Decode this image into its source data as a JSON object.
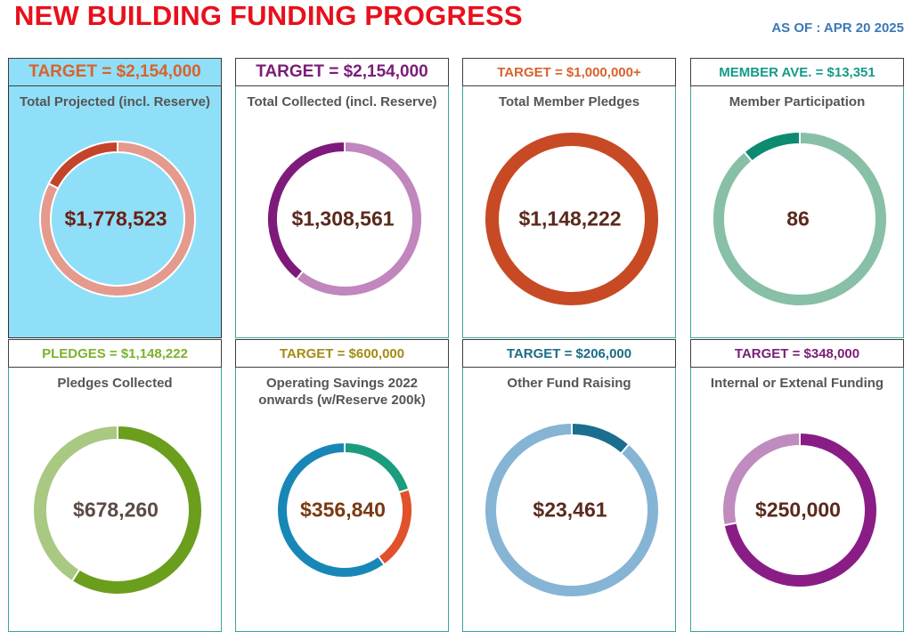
{
  "header": {
    "title": "NEW BUILDING FUNDING PROGRESS",
    "as_of": "AS OF : APR 20 2025"
  },
  "panels": [
    {
      "target_label": "TARGET = $2,154,000",
      "target_color": "#d9622b",
      "title": "Total Projected (incl. Reserve)",
      "center_value": "$1,778,523",
      "value_color": "#6b1f16",
      "highlight": true
    },
    {
      "target_label": "TARGET = $2,154,000",
      "target_color": "#7a1d78",
      "title": "Total Collected (incl. Reserve)",
      "center_value": "$1,308,561",
      "value_color": "#5a2a1c",
      "highlight": false
    },
    {
      "target_label": "TARGET = $1,000,000+",
      "target_color": "#d9622b",
      "title": "Total Member Pledges",
      "center_value": "$1,148,222",
      "value_color": "#5a2a1c",
      "highlight": false
    },
    {
      "target_label": "MEMBER AVE. = $13,351",
      "target_color": "#159a86",
      "title": "Member Participation",
      "center_value": "86",
      "value_color": "#5a2a1c",
      "highlight": false
    },
    {
      "target_label": "PLEDGES = $1,148,222",
      "target_color": "#7cb22d",
      "title": "Pledges Collected",
      "center_value": "$678,260",
      "value_color": "#5b4b45",
      "highlight": false
    },
    {
      "target_label": "TARGET = $600,000",
      "target_color": "#a38c12",
      "title": "Operating Savings 2022 onwards (w/Reserve 200k)",
      "center_value": "$356,840",
      "value_color": "#7a3a12",
      "highlight": false
    },
    {
      "target_label": "TARGET = $206,000",
      "target_color": "#1c6c86",
      "title": "Other Fund Raising",
      "center_value": "$23,461",
      "value_color": "#5a2a1c",
      "highlight": false
    },
    {
      "target_label": "TARGET = $348,000",
      "target_color": "#7a1d78",
      "title": "Internal or Extenal Funding",
      "center_value": "$250,000",
      "value_color": "#5a2a1c",
      "highlight": false
    }
  ],
  "chart_data": [
    {
      "type": "pie",
      "title": "Total Projected (incl. Reserve)",
      "slices": [
        {
          "value": 1778523,
          "color": "#e59a8e"
        },
        {
          "value": 375477,
          "color": "#c4442a"
        }
      ]
    },
    {
      "type": "pie",
      "title": "Total Collected (incl. Reserve)",
      "slices": [
        {
          "value": 1308561,
          "color": "#c186bd"
        },
        {
          "value": 845439,
          "color": "#7e1a7a"
        }
      ]
    },
    {
      "type": "pie",
      "title": "Total Member Pledges",
      "slices": [
        {
          "value": 1,
          "color": "#c74a25"
        }
      ]
    },
    {
      "type": "pie",
      "title": "Member Participation",
      "slices": [
        {
          "value": 0.89,
          "color": "#88bfa7"
        },
        {
          "value": 0.11,
          "color": "#0c8b70"
        }
      ]
    },
    {
      "type": "pie",
      "title": "Pledges Collected",
      "slices": [
        {
          "value": 678260,
          "color": "#6b9e1c"
        },
        {
          "value": 469962,
          "color": "#a9c882"
        }
      ]
    },
    {
      "type": "pie",
      "title": "Operating Savings 2022 onwards (w/Reserve 200k)",
      "slices": [
        {
          "value": 0.2,
          "color": "#1a9c7e"
        },
        {
          "value": 0.2,
          "color": "#e0512c"
        },
        {
          "value": 0.6,
          "color": "#1887b8"
        }
      ]
    },
    {
      "type": "pie",
      "title": "Other Fund Raising",
      "slices": [
        {
          "value": 23461,
          "color": "#1b6e90"
        },
        {
          "value": 182539,
          "color": "#86b4d5"
        }
      ]
    },
    {
      "type": "pie",
      "title": "Internal or Extenal Funding",
      "slices": [
        {
          "value": 250000,
          "color": "#8a1d85"
        },
        {
          "value": 98000,
          "color": "#c08bbf"
        }
      ]
    }
  ]
}
